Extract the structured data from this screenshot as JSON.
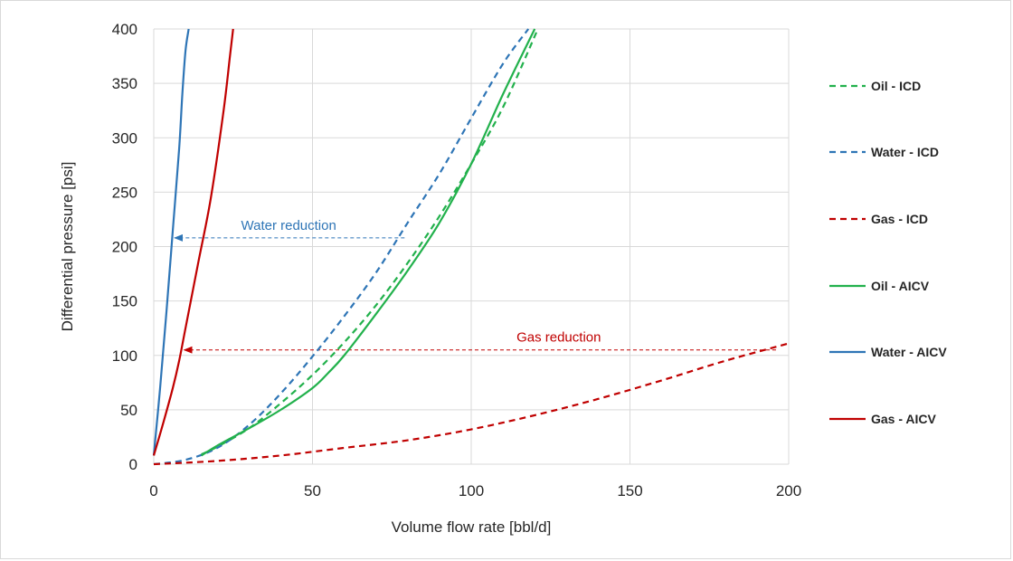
{
  "chart_data": {
    "type": "line",
    "title": "",
    "xlabel": "Volume flow rate [bbl/d]",
    "ylabel": "Differential pressure [psi]",
    "xlim": [
      0,
      200
    ],
    "ylim": [
      0,
      400
    ],
    "xticks": [
      0,
      50,
      100,
      150,
      200
    ],
    "yticks": [
      0,
      50,
      100,
      150,
      200,
      250,
      300,
      350,
      400
    ],
    "grid": true,
    "legend_position": "right",
    "series": [
      {
        "name": "Oil - ICD",
        "color": "#22b14c",
        "dash": "dashed",
        "x": [
          15,
          20,
          30,
          40,
          50,
          60,
          70,
          80,
          90,
          100,
          110,
          121
        ],
        "y": [
          9,
          16,
          33,
          56,
          82,
          112,
          146,
          185,
          228,
          276,
          328,
          400
        ]
      },
      {
        "name": "Water - ICD",
        "color": "#2e75b6",
        "dash": "dashed",
        "x": [
          0,
          10,
          20,
          30,
          40,
          50,
          60,
          70,
          80,
          90,
          100,
          110,
          118
        ],
        "y": [
          0,
          4,
          15,
          36,
          65,
          99,
          136,
          176,
          222,
          267,
          318,
          368,
          400
        ]
      },
      {
        "name": "Gas - ICD",
        "color": "#c00000",
        "dash": "dashed",
        "x": [
          0,
          20,
          40,
          60,
          80,
          100,
          120,
          140,
          160,
          180,
          200
        ],
        "y": [
          0,
          3,
          8,
          15,
          22,
          32,
          45,
          60,
          77,
          95,
          111
        ]
      },
      {
        "name": "Oil - AICV",
        "color": "#22b14c",
        "dash": "solid",
        "x": [
          15,
          20,
          30,
          40,
          50,
          55,
          60,
          70,
          80,
          90,
          100,
          110,
          120
        ],
        "y": [
          8,
          17,
          33,
          50,
          70,
          84,
          100,
          138,
          178,
          222,
          276,
          340,
          400
        ]
      },
      {
        "name": "Water - AICV",
        "color": "#2e75b6",
        "dash": "solid",
        "x": [
          0,
          2,
          4,
          6,
          8,
          9,
          10,
          11
        ],
        "y": [
          8,
          70,
          140,
          215,
          290,
          340,
          380,
          400
        ]
      },
      {
        "name": "Gas - AICV",
        "color": "#c00000",
        "dash": "solid",
        "x": [
          0,
          3,
          6,
          8,
          10,
          14,
          18,
          22,
          24,
          25
        ],
        "y": [
          8,
          38,
          70,
          95,
          125,
          185,
          245,
          325,
          375,
          400
        ]
      }
    ],
    "annotations": [
      {
        "text": "Water reduction",
        "color": "#2e75b6",
        "from_x": 79,
        "to_x": 6,
        "y": 208
      },
      {
        "text": "Gas reduction",
        "color": "#c00000",
        "from_x": 196,
        "to_x": 9,
        "y": 105
      }
    ]
  }
}
